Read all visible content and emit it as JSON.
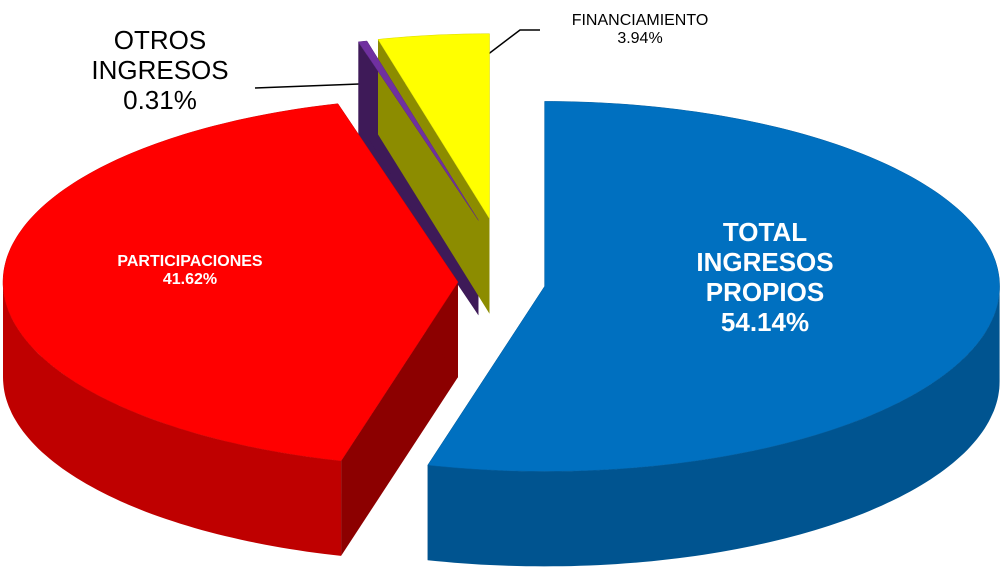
{
  "chart_data": {
    "type": "pie",
    "categories": [
      "TOTAL INGRESOS PROPIOS",
      "PARTICIPACIONES",
      "OTROS INGRESOS",
      "FINANCIAMIENTO"
    ],
    "values": [
      54.14,
      41.62,
      0.31,
      3.94
    ],
    "value_labels": [
      "54.14%",
      "41.62%",
      "0.31%",
      "3.94%"
    ],
    "colors": [
      "#0070c0",
      "#ff0000",
      "#7030a0",
      "#ffff00"
    ]
  }
}
